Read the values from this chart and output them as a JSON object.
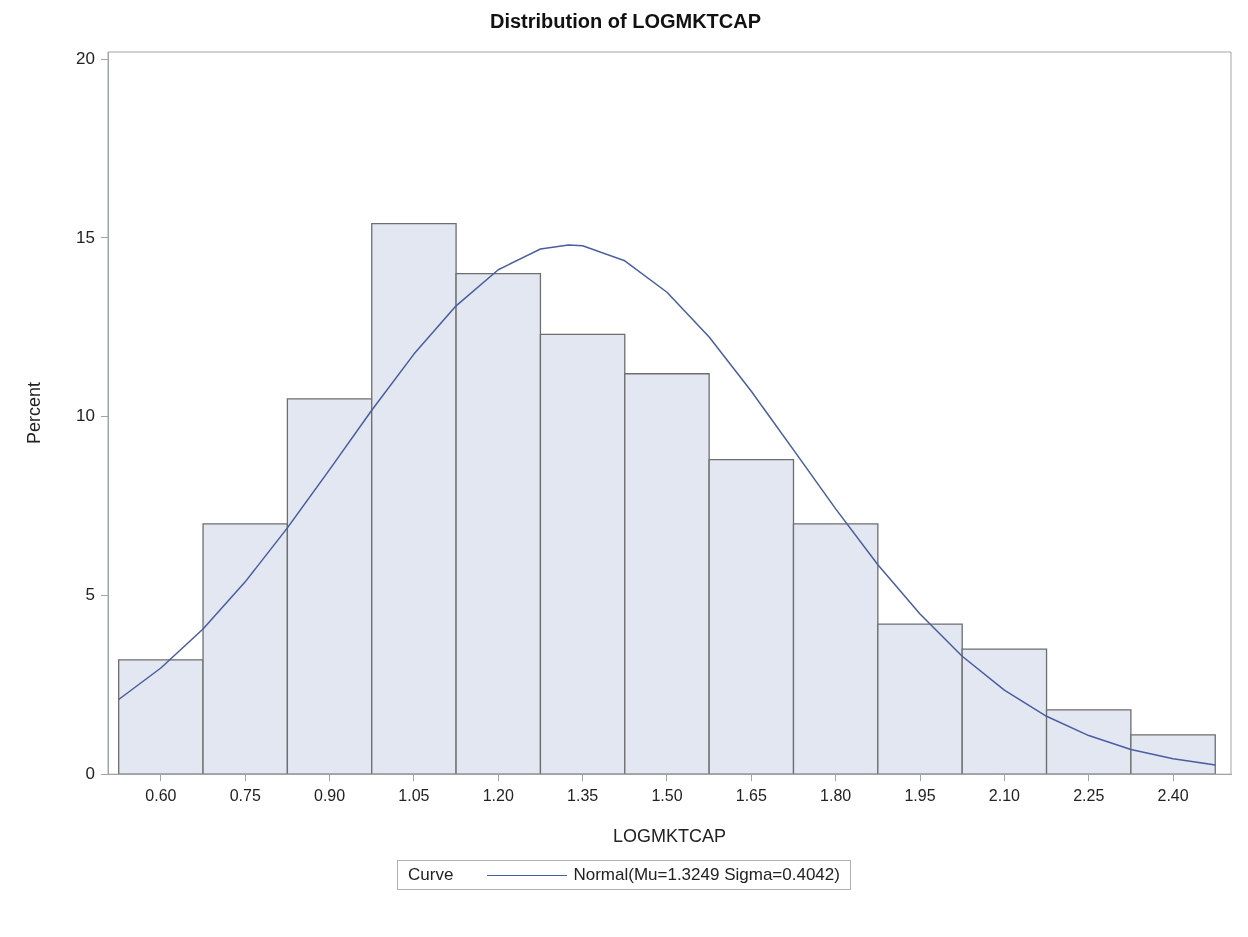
{
  "chart_data": {
    "type": "histogram",
    "title": "Distribution of LOGMKTCAP",
    "xlabel": "LOGMKTCAP",
    "ylabel": "Percent",
    "legend_title": "Curve",
    "bins": [
      0.525,
      0.675,
      0.825,
      0.975,
      1.125,
      1.275,
      1.425,
      1.575,
      1.725,
      1.875,
      2.025,
      2.175,
      2.325,
      2.475
    ],
    "values": [
      3.2,
      7.0,
      10.5,
      15.4,
      14.0,
      12.3,
      11.2,
      8.8,
      7.0,
      4.2,
      3.5,
      1.8,
      1.1
    ],
    "color": "#e2e7f1",
    "series": [
      {
        "type": "line",
        "name": "Normal(Mu=1.3249 Sigma=0.4042)",
        "color": "#4a5d9f",
        "x": [
          0.525,
          0.6,
          0.675,
          0.75,
          0.825,
          0.9,
          0.975,
          1.05,
          1.125,
          1.2,
          1.275,
          1.3249,
          1.35,
          1.425,
          1.5,
          1.575,
          1.65,
          1.725,
          1.8,
          1.875,
          1.95,
          2.025,
          2.1,
          2.175,
          2.25,
          2.325,
          2.4,
          2.475
        ],
        "values": [
          2.09,
          2.97,
          4.06,
          5.38,
          6.89,
          8.52,
          10.18,
          11.75,
          13.1,
          14.11,
          14.69,
          14.8,
          14.78,
          14.36,
          13.48,
          12.23,
          10.71,
          9.07,
          7.42,
          5.86,
          4.48,
          3.3,
          2.35,
          1.62,
          1.08,
          0.69,
          0.43,
          0.26
        ]
      }
    ],
    "xlim": [
      0.506,
      2.503
    ],
    "xticks": [
      {
        "value": 0.6,
        "label": "0.60"
      },
      {
        "value": 0.75,
        "label": "0.75"
      },
      {
        "value": 0.9,
        "label": "0.90"
      },
      {
        "value": 1.05,
        "label": "1.05"
      },
      {
        "value": 1.2,
        "label": "1.20"
      },
      {
        "value": 1.35,
        "label": "1.35"
      },
      {
        "value": 1.5,
        "label": "1.50"
      },
      {
        "value": 1.65,
        "label": "1.65"
      },
      {
        "value": 1.8,
        "label": "1.80"
      },
      {
        "value": 1.95,
        "label": "1.95"
      },
      {
        "value": 2.1,
        "label": "2.10"
      },
      {
        "value": 2.25,
        "label": "2.25"
      },
      {
        "value": 2.4,
        "label": "2.40"
      }
    ],
    "ylim": [
      0,
      20.2
    ],
    "yticks": [
      0,
      5,
      10,
      15,
      20
    ],
    "grid": false,
    "legend": "bottom",
    "marker": "none",
    "line_style": "solid"
  }
}
